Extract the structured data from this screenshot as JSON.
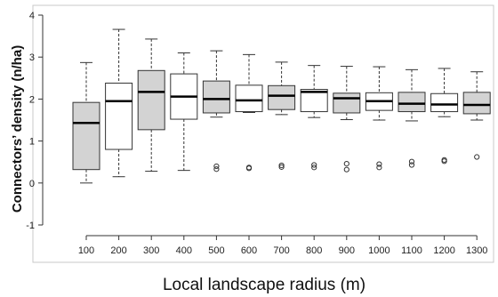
{
  "chart_data": {
    "type": "boxplot",
    "xlabel": "Local landscape radius (m)",
    "ylabel": "Connectors’ density  (n/ha)",
    "ylim": [
      -1,
      4
    ],
    "yticks": [
      -1,
      0,
      1,
      2,
      3,
      4
    ],
    "grid": false,
    "colors": {
      "shaded": "#d3d3d3",
      "open": "#ffffff",
      "stroke": "#333333"
    },
    "categories": [
      "100",
      "200",
      "300",
      "400",
      "500",
      "600",
      "700",
      "800",
      "900",
      "1000",
      "1100",
      "1200",
      "1300"
    ],
    "boxes": [
      {
        "category": "100",
        "fill": "shaded",
        "whisker_low": 0.0,
        "q1": 0.32,
        "median": 1.43,
        "q3": 1.92,
        "whisker_high": 2.87,
        "outliers": []
      },
      {
        "category": "200",
        "fill": "open",
        "whisker_low": 0.15,
        "q1": 0.8,
        "median": 1.95,
        "q3": 2.38,
        "whisker_high": 3.66,
        "outliers": []
      },
      {
        "category": "300",
        "fill": "shaded",
        "whisker_low": 0.28,
        "q1": 1.27,
        "median": 2.17,
        "q3": 2.68,
        "whisker_high": 3.43,
        "outliers": []
      },
      {
        "category": "400",
        "fill": "open",
        "whisker_low": 0.3,
        "q1": 1.52,
        "median": 2.06,
        "q3": 2.6,
        "whisker_high": 3.1,
        "outliers": []
      },
      {
        "category": "500",
        "fill": "shaded",
        "whisker_low": 1.57,
        "q1": 1.67,
        "median": 2.0,
        "q3": 2.43,
        "whisker_high": 3.15,
        "outliers": [
          0.33,
          0.4
        ]
      },
      {
        "category": "600",
        "fill": "open",
        "whisker_low": 1.68,
        "q1": 1.7,
        "median": 1.97,
        "q3": 2.33,
        "whisker_high": 3.06,
        "outliers": [
          0.35,
          0.37
        ]
      },
      {
        "category": "700",
        "fill": "shaded",
        "whisker_low": 1.63,
        "q1": 1.75,
        "median": 2.08,
        "q3": 2.32,
        "whisker_high": 2.88,
        "outliers": [
          0.38,
          0.42
        ]
      },
      {
        "category": "800",
        "fill": "open",
        "whisker_low": 1.56,
        "q1": 1.7,
        "median": 2.17,
        "q3": 2.23,
        "whisker_high": 2.8,
        "outliers": [
          0.37,
          0.43
        ]
      },
      {
        "category": "900",
        "fill": "shaded",
        "whisker_low": 1.51,
        "q1": 1.67,
        "median": 2.02,
        "q3": 2.14,
        "whisker_high": 2.78,
        "outliers": [
          0.32,
          0.46
        ]
      },
      {
        "category": "1000",
        "fill": "open",
        "whisker_low": 1.5,
        "q1": 1.73,
        "median": 1.95,
        "q3": 2.15,
        "whisker_high": 2.77,
        "outliers": [
          0.37,
          0.45
        ]
      },
      {
        "category": "1100",
        "fill": "shaded",
        "whisker_low": 1.48,
        "q1": 1.7,
        "median": 1.89,
        "q3": 2.16,
        "whisker_high": 2.7,
        "outliers": [
          0.43,
          0.51
        ]
      },
      {
        "category": "1200",
        "fill": "open",
        "whisker_low": 1.58,
        "q1": 1.7,
        "median": 1.87,
        "q3": 2.13,
        "whisker_high": 2.73,
        "outliers": [
          0.52,
          0.55
        ]
      },
      {
        "category": "1300",
        "fill": "shaded",
        "whisker_low": 1.5,
        "q1": 1.65,
        "median": 1.86,
        "q3": 2.16,
        "whisker_high": 2.65,
        "outliers": [
          0.62
        ]
      }
    ]
  }
}
